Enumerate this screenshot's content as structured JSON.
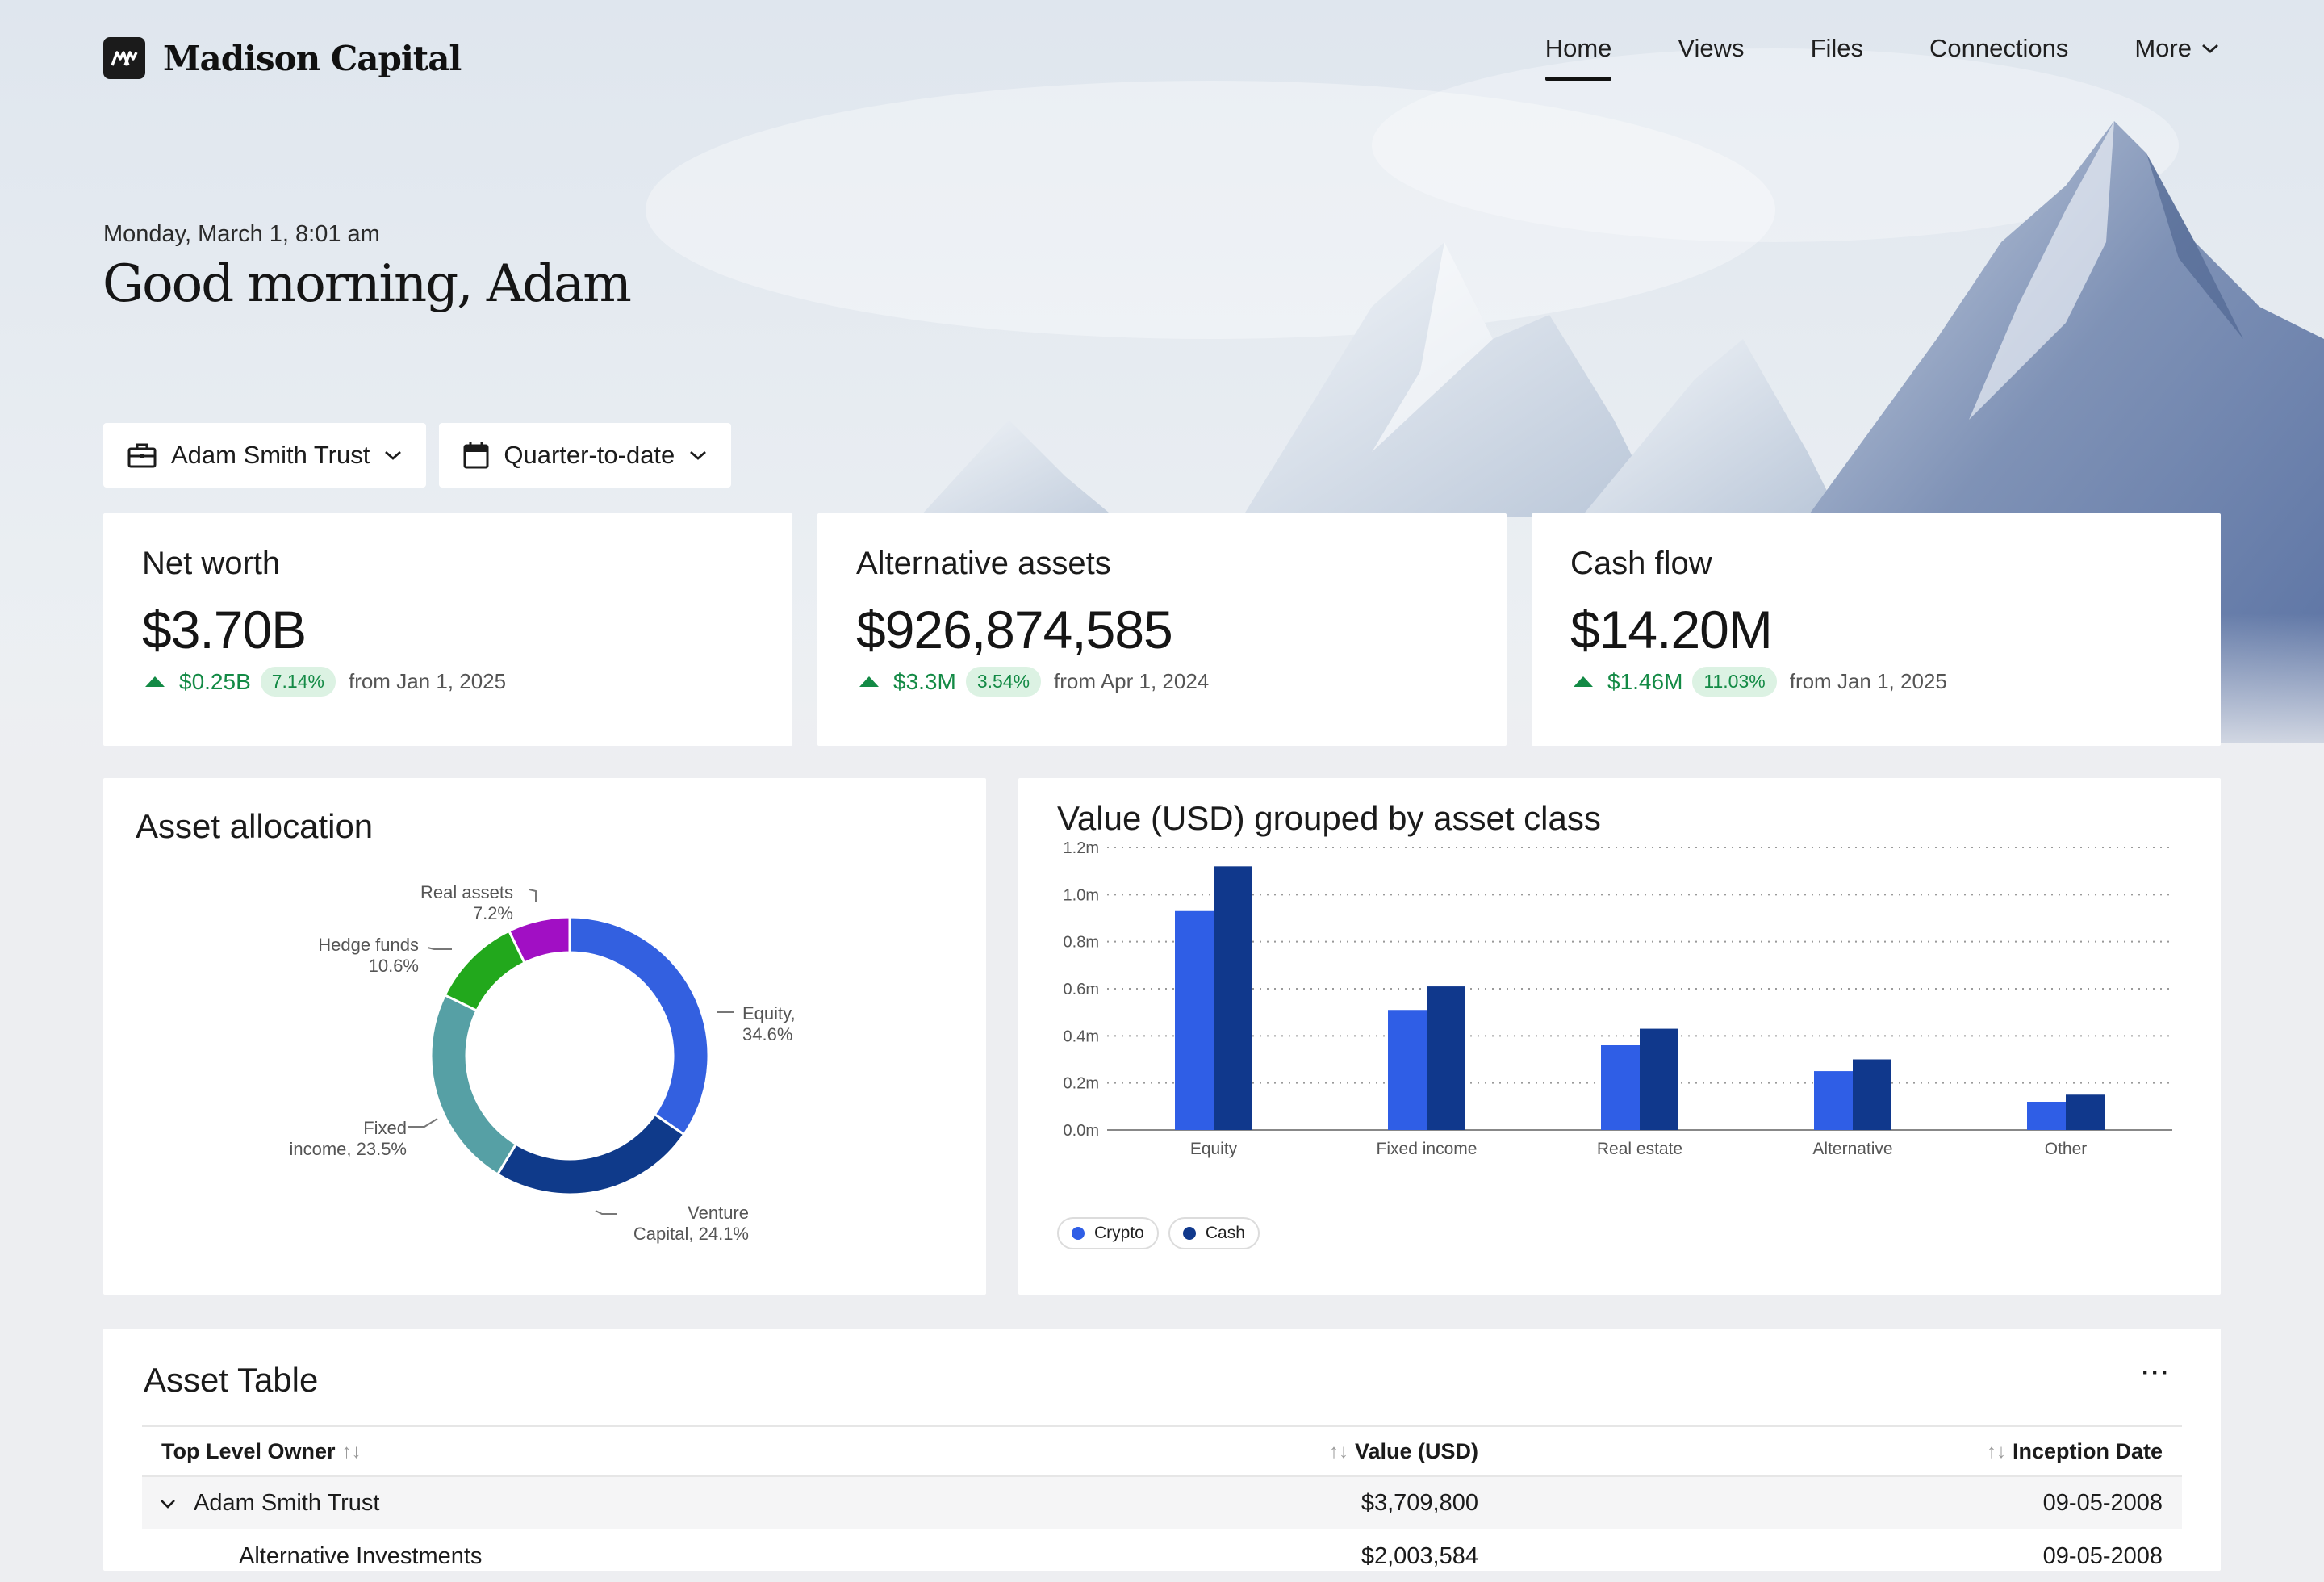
{
  "brand": {
    "name": "Madison Capital"
  },
  "nav": {
    "items": [
      "Home",
      "Views",
      "Files",
      "Connections",
      "More"
    ],
    "active": "Home"
  },
  "greeting": {
    "datetime": "Monday, March 1, 8:01 am",
    "headline": "Good morning, Adam"
  },
  "filters": {
    "entity": "Adam Smith Trust",
    "period": "Quarter-to-date"
  },
  "metrics": [
    {
      "title": "Net worth",
      "value": "$3.70B",
      "delta": "$0.25B",
      "pct": "7.14%",
      "since": "from Jan 1, 2025"
    },
    {
      "title": "Alternative assets",
      "value": "$926,874,585",
      "delta": "$3.3M",
      "pct": "3.54%",
      "since": "from Apr 1, 2024"
    },
    {
      "title": "Cash flow",
      "value": "$14.20M",
      "delta": "$1.46M",
      "pct": "11.03%",
      "since": "from Jan 1, 2025"
    }
  ],
  "allocation": {
    "title": "Asset allocation",
    "labels": {
      "real_assets_1": "Real assets",
      "real_assets_2": "7.2%",
      "hedge_1": "Hedge funds",
      "hedge_2": "10.6%",
      "equity_1": "Equity,",
      "equity_2": "34.6%",
      "fixed_1": "Fixed",
      "fixed_2": "income, 23.5%",
      "venture_1": "Venture",
      "venture_2": "Capital, 24.1%"
    }
  },
  "chart_data": [
    {
      "type": "pie",
      "title": "Asset allocation",
      "categories": [
        "Equity",
        "Venture Capital",
        "Fixed income",
        "Hedge funds",
        "Real assets"
      ],
      "values": [
        34.6,
        24.1,
        23.5,
        10.6,
        7.2
      ],
      "colors": [
        "#3360e0",
        "#0f3a8a",
        "#56a0a5",
        "#22a81c",
        "#a10fc4"
      ]
    },
    {
      "type": "bar",
      "title": "Value (USD) grouped by asset class",
      "categories": [
        "Equity",
        "Fixed income",
        "Real estate",
        "Alternative",
        "Other"
      ],
      "series": [
        {
          "name": "Crypto",
          "values": [
            0.93,
            0.51,
            0.36,
            0.25,
            0.12
          ],
          "color": "#2f5ee6"
        },
        {
          "name": "Cash",
          "values": [
            1.12,
            0.61,
            0.43,
            0.3,
            0.15
          ],
          "color": "#10388c"
        }
      ],
      "yticks": [
        "0.0m",
        "0.2m",
        "0.4m",
        "0.6m",
        "0.8m",
        "1.0m",
        "1.2m"
      ],
      "ylim": [
        0,
        1.2
      ],
      "grid": true,
      "legend": "bottom-left"
    }
  ],
  "table": {
    "title": "Asset Table",
    "columns": [
      "Top Level Owner",
      "Value (USD)",
      "Inception Date"
    ],
    "rows": [
      {
        "owner": "Adam Smith Trust",
        "value": "$3,709,800",
        "date": "09-05-2008"
      },
      {
        "owner": "Alternative Investments",
        "value": "$2,003,584",
        "date": "09-05-2008"
      }
    ]
  }
}
